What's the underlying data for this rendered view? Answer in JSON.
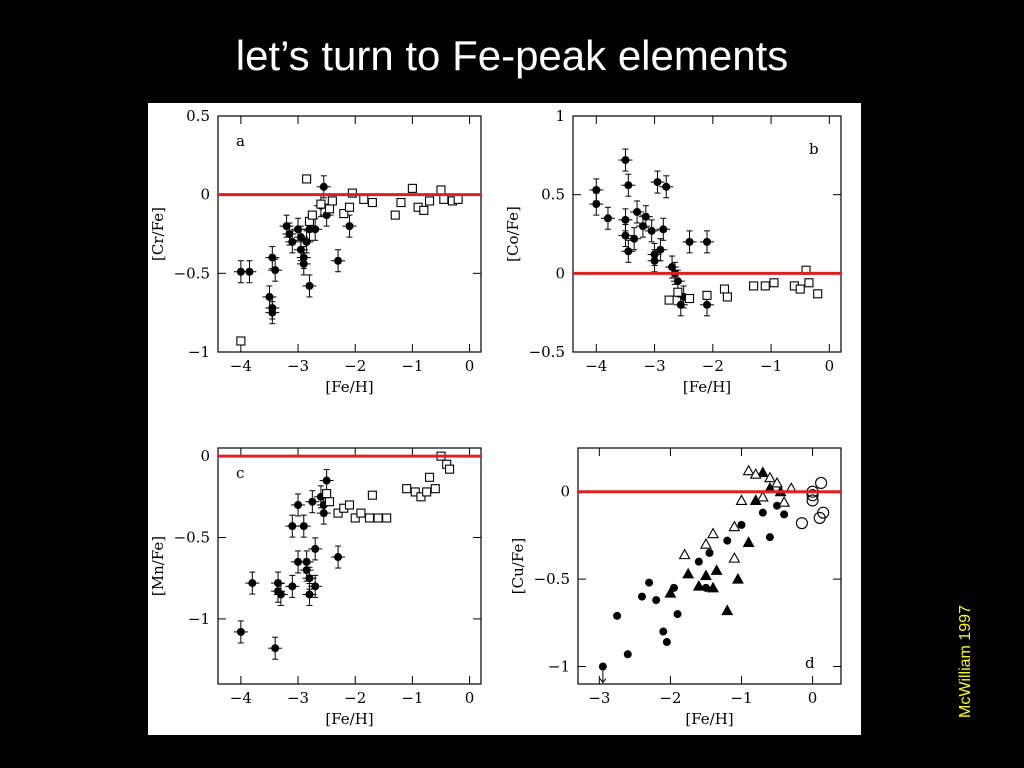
{
  "slide": {
    "title": "let’s turn to Fe-peak elements",
    "credit": "McWilliam 1997"
  },
  "colors": {
    "background": "#000000",
    "title": "#ffffff",
    "credit": "#ffff00",
    "solar_line": "#e02020"
  },
  "chart_data": [
    {
      "type": "scatter",
      "panel_label": "a",
      "xlabel": "[Fe/H]",
      "ylabel": "[Cr/Fe]",
      "xlim": [
        -4.4,
        0.2
      ],
      "ylim": [
        -1.0,
        0.5
      ],
      "xticks": [
        -4,
        -3,
        -2,
        -1,
        0
      ],
      "yticks": [
        -1,
        -0.5,
        0,
        0.5
      ],
      "ytick_labels": [
        "−1",
        "−0.5",
        "0",
        "0.5"
      ],
      "reference_line_y": 0,
      "series": [
        {
          "marker": "filled-circle",
          "with_errorbars": true,
          "points": [
            [
              -4.0,
              -0.49
            ],
            [
              -3.85,
              -0.49
            ],
            [
              -3.45,
              -0.4
            ],
            [
              -3.4,
              -0.48
            ],
            [
              -3.5,
              -0.65
            ],
            [
              -3.45,
              -0.72
            ],
            [
              -3.45,
              -0.75
            ],
            [
              -3.2,
              -0.2
            ],
            [
              -3.15,
              -0.25
            ],
            [
              -3.1,
              -0.3
            ],
            [
              -3.0,
              -0.22
            ],
            [
              -2.95,
              -0.27
            ],
            [
              -2.95,
              -0.35
            ],
            [
              -2.9,
              -0.4
            ],
            [
              -2.9,
              -0.44
            ],
            [
              -2.85,
              -0.3
            ],
            [
              -2.8,
              -0.22
            ],
            [
              -2.8,
              -0.58
            ],
            [
              -2.7,
              -0.22
            ],
            [
              -2.6,
              -0.07
            ],
            [
              -2.55,
              0.05
            ],
            [
              -2.5,
              -0.13
            ],
            [
              -2.3,
              -0.42
            ],
            [
              -2.1,
              -0.2
            ]
          ]
        },
        {
          "marker": "open-square",
          "with_errorbars": false,
          "points": [
            [
              -4.0,
              -0.93
            ],
            [
              -2.85,
              0.1
            ],
            [
              -2.8,
              -0.17
            ],
            [
              -2.75,
              -0.13
            ],
            [
              -2.6,
              -0.06
            ],
            [
              -2.45,
              -0.09
            ],
            [
              -2.4,
              -0.04
            ],
            [
              -2.2,
              -0.12
            ],
            [
              -2.1,
              -0.08
            ],
            [
              -2.05,
              0.01
            ],
            [
              -1.85,
              -0.03
            ],
            [
              -1.7,
              -0.05
            ],
            [
              -1.3,
              -0.13
            ],
            [
              -1.2,
              -0.05
            ],
            [
              -1.0,
              0.04
            ],
            [
              -0.9,
              -0.08
            ],
            [
              -0.8,
              -0.1
            ],
            [
              -0.7,
              -0.04
            ],
            [
              -0.5,
              0.03
            ],
            [
              -0.45,
              -0.03
            ],
            [
              -0.3,
              -0.04
            ],
            [
              -0.2,
              -0.03
            ]
          ]
        }
      ]
    },
    {
      "type": "scatter",
      "panel_label": "b",
      "xlabel": "[Fe/H]",
      "ylabel": "[Co/Fe]",
      "xlim": [
        -4.4,
        0.2
      ],
      "ylim": [
        -0.5,
        1.0
      ],
      "xticks": [
        -4,
        -3,
        -2,
        -1,
        0
      ],
      "yticks": [
        -0.5,
        0,
        0.5,
        1
      ],
      "ytick_labels": [
        "−0.5",
        "0",
        "0.5",
        "1"
      ],
      "reference_line_y": 0,
      "series": [
        {
          "marker": "filled-circle",
          "with_errorbars": true,
          "points": [
            [
              -4.0,
              0.53
            ],
            [
              -4.0,
              0.44
            ],
            [
              -3.8,
              0.35
            ],
            [
              -3.5,
              0.72
            ],
            [
              -3.45,
              0.56
            ],
            [
              -3.5,
              0.34
            ],
            [
              -3.5,
              0.24
            ],
            [
              -3.45,
              0.14
            ],
            [
              -3.35,
              0.22
            ],
            [
              -3.3,
              0.39
            ],
            [
              -3.2,
              0.3
            ],
            [
              -3.15,
              0.36
            ],
            [
              -3.05,
              0.27
            ],
            [
              -3.0,
              0.08
            ],
            [
              -3.0,
              0.12
            ],
            [
              -2.95,
              0.58
            ],
            [
              -2.9,
              0.15
            ],
            [
              -2.85,
              0.28
            ],
            [
              -2.8,
              0.55
            ],
            [
              -2.7,
              0.04
            ],
            [
              -2.65,
              0.0
            ],
            [
              -2.6,
              -0.05
            ],
            [
              -2.55,
              -0.2
            ],
            [
              -2.5,
              -0.15
            ],
            [
              -2.4,
              0.2
            ],
            [
              -2.1,
              0.2
            ],
            [
              -2.1,
              -0.2
            ]
          ]
        },
        {
          "marker": "open-square",
          "with_errorbars": false,
          "points": [
            [
              -2.75,
              -0.17
            ],
            [
              -2.6,
              -0.12
            ],
            [
              -2.4,
              -0.16
            ],
            [
              -2.1,
              -0.14
            ],
            [
              -1.8,
              -0.1
            ],
            [
              -1.75,
              -0.15
            ],
            [
              -1.3,
              -0.08
            ],
            [
              -1.1,
              -0.08
            ],
            [
              -0.95,
              -0.06
            ],
            [
              -0.6,
              -0.08
            ],
            [
              -0.5,
              -0.1
            ],
            [
              -0.4,
              0.02
            ],
            [
              -0.35,
              -0.06
            ],
            [
              -0.2,
              -0.13
            ]
          ]
        }
      ]
    },
    {
      "type": "scatter",
      "panel_label": "c",
      "xlabel": "[Fe/H]",
      "ylabel": "[Mn/Fe]",
      "xlim": [
        -4.4,
        0.2
      ],
      "ylim": [
        -1.4,
        0.05
      ],
      "xticks": [
        -4,
        -3,
        -2,
        -1,
        0
      ],
      "yticks": [
        -1,
        -0.5,
        0
      ],
      "ytick_labels": [
        "−1",
        "−0.5",
        "0"
      ],
      "reference_line_y": 0,
      "series": [
        {
          "marker": "filled-circle",
          "with_errorbars": true,
          "points": [
            [
              -4.0,
              -1.08
            ],
            [
              -3.8,
              -0.78
            ],
            [
              -3.4,
              -1.18
            ],
            [
              -3.35,
              -0.78
            ],
            [
              -3.35,
              -0.83
            ],
            [
              -3.3,
              -0.85
            ],
            [
              -3.1,
              -0.43
            ],
            [
              -3.1,
              -0.8
            ],
            [
              -3.0,
              -0.3
            ],
            [
              -3.0,
              -0.65
            ],
            [
              -2.9,
              -0.43
            ],
            [
              -2.85,
              -0.65
            ],
            [
              -2.85,
              -0.7
            ],
            [
              -2.8,
              -0.75
            ],
            [
              -2.8,
              -0.85
            ],
            [
              -2.75,
              -0.28
            ],
            [
              -2.7,
              -0.57
            ],
            [
              -2.7,
              -0.8
            ],
            [
              -2.6,
              -0.25
            ],
            [
              -2.55,
              -0.3
            ],
            [
              -2.55,
              -0.35
            ],
            [
              -2.5,
              -0.15
            ],
            [
              -2.3,
              -0.62
            ]
          ]
        },
        {
          "marker": "open-square",
          "with_errorbars": false,
          "points": [
            [
              -2.5,
              -0.23
            ],
            [
              -2.45,
              -0.28
            ],
            [
              -2.3,
              -0.35
            ],
            [
              -2.2,
              -0.32
            ],
            [
              -2.1,
              -0.3
            ],
            [
              -2.0,
              -0.38
            ],
            [
              -1.9,
              -0.35
            ],
            [
              -1.75,
              -0.38
            ],
            [
              -1.7,
              -0.24
            ],
            [
              -1.6,
              -0.38
            ],
            [
              -1.45,
              -0.38
            ],
            [
              -1.1,
              -0.2
            ],
            [
              -0.95,
              -0.22
            ],
            [
              -0.85,
              -0.25
            ],
            [
              -0.75,
              -0.22
            ],
            [
              -0.7,
              -0.13
            ],
            [
              -0.6,
              -0.2
            ],
            [
              -0.5,
              0.0
            ],
            [
              -0.4,
              -0.05
            ],
            [
              -0.35,
              -0.08
            ]
          ]
        }
      ]
    },
    {
      "type": "scatter",
      "panel_label": "d",
      "xlabel": "[Fe/H]",
      "ylabel": "[Cu/Fe]",
      "xlim": [
        -3.3,
        0.4
      ],
      "ylim": [
        -1.1,
        0.25
      ],
      "xticks": [
        -3,
        -2,
        -1,
        0
      ],
      "yticks": [
        -1,
        -0.5,
        0
      ],
      "ytick_labels": [
        "−1",
        "−0.5",
        "0"
      ],
      "reference_line_y": 0,
      "series": [
        {
          "marker": "filled-circle",
          "with_errorbars": false,
          "points": [
            [
              -2.95,
              -1.0
            ],
            [
              -2.75,
              -0.71
            ],
            [
              -2.6,
              -0.93
            ],
            [
              -2.4,
              -0.6
            ],
            [
              -2.3,
              -0.52
            ],
            [
              -2.2,
              -0.62
            ],
            [
              -2.1,
              -0.8
            ],
            [
              -2.05,
              -0.86
            ],
            [
              -1.95,
              -0.55
            ],
            [
              -1.9,
              -0.7
            ],
            [
              -1.6,
              -0.4
            ],
            [
              -1.5,
              -0.55
            ],
            [
              -1.45,
              -0.35
            ],
            [
              -1.2,
              -0.28
            ],
            [
              -1.0,
              -0.19
            ],
            [
              -0.7,
              -0.12
            ],
            [
              -0.6,
              -0.26
            ],
            [
              -0.5,
              -0.08
            ],
            [
              -0.4,
              -0.13
            ]
          ]
        },
        {
          "marker": "filled-triangle",
          "with_errorbars": false,
          "points": [
            [
              -2.0,
              -0.58
            ],
            [
              -1.75,
              -0.47
            ],
            [
              -1.6,
              -0.54
            ],
            [
              -1.5,
              -0.48
            ],
            [
              -1.4,
              -0.55
            ],
            [
              -1.35,
              -0.45
            ],
            [
              -1.2,
              -0.68
            ],
            [
              -1.05,
              -0.5
            ],
            [
              -0.9,
              -0.29
            ],
            [
              -0.8,
              -0.05
            ],
            [
              -0.7,
              0.11
            ],
            [
              -0.6,
              0.02
            ],
            [
              -0.45,
              0.0
            ]
          ]
        },
        {
          "marker": "open-triangle",
          "with_errorbars": false,
          "points": [
            [
              -1.8,
              -0.36
            ],
            [
              -1.5,
              -0.3
            ],
            [
              -1.4,
              -0.24
            ],
            [
              -1.1,
              -0.38
            ],
            [
              -1.1,
              -0.2
            ],
            [
              -1.0,
              -0.05
            ],
            [
              -0.9,
              0.12
            ],
            [
              -0.8,
              0.1
            ],
            [
              -0.7,
              -0.03
            ],
            [
              -0.6,
              0.08
            ],
            [
              -0.5,
              0.05
            ],
            [
              -0.4,
              -0.06
            ],
            [
              -0.3,
              0.02
            ]
          ]
        },
        {
          "marker": "open-circle",
          "with_errorbars": false,
          "points": [
            [
              -0.15,
              -0.18
            ],
            [
              0.0,
              -0.02
            ],
            [
              0.0,
              0.0
            ],
            [
              0.0,
              -0.05
            ],
            [
              0.1,
              -0.15
            ],
            [
              0.15,
              -0.12
            ],
            [
              0.12,
              0.05
            ]
          ]
        }
      ]
    }
  ]
}
